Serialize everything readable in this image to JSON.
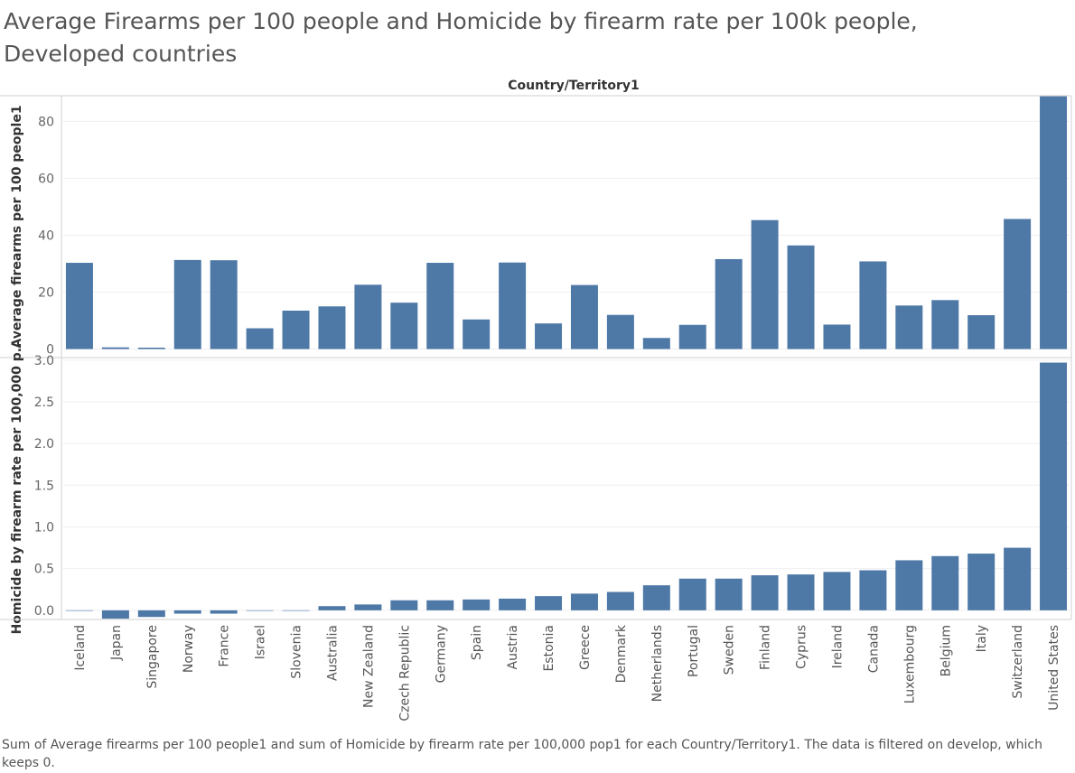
{
  "title": "Average Firearms per 100 people and Homicide by firearm rate per 100k people, Developed countries",
  "caption": "Sum of Average firearms per 100 people1 and sum of Homicide by firearm rate per 100,000 pop1 for each Country/Territory1. The data is filtered on develop, which keeps 0.",
  "chart_data": {
    "type": "bar",
    "column_header": "Country/Territory1",
    "categories": [
      "Iceland",
      "Japan",
      "Singapore",
      "Norway",
      "France",
      "Israel",
      "Slovenia",
      "Australia",
      "New Zealand",
      "Czech Republic",
      "Germany",
      "Spain",
      "Austria",
      "Estonia",
      "Greece",
      "Denmark",
      "Netherlands",
      "Portugal",
      "Sweden",
      "Finland",
      "Cyprus",
      "Ireland",
      "Canada",
      "Luxembourg",
      "Belgium",
      "Italy",
      "Switzerland",
      "United States"
    ],
    "series": [
      {
        "name": "Average firearms per 100 people1",
        "ylabel": "Average firearms per 100 people1",
        "yticks": [
          0,
          20,
          40,
          60,
          80
        ],
        "ylim": [
          -3,
          89
        ],
        "values": [
          30.3,
          0.6,
          0.5,
          31.3,
          31.2,
          7.3,
          13.5,
          15.0,
          22.6,
          16.3,
          30.3,
          10.4,
          30.4,
          9.0,
          22.5,
          12.0,
          3.9,
          8.5,
          31.6,
          45.3,
          36.4,
          8.6,
          30.8,
          15.3,
          17.2,
          11.9,
          45.7,
          88.8
        ]
      },
      {
        "name": "Homicide by firearm rate per 100,000 pop1",
        "ylabel": "Homicide by firearm rate per 100,000 p..",
        "yticks": [
          0.0,
          0.5,
          1.0,
          1.5,
          2.0,
          2.5,
          3.0
        ],
        "ylim": [
          -0.11,
          3.03
        ],
        "values": [
          0.0,
          -0.1,
          -0.08,
          -0.04,
          -0.04,
          0.0,
          0.0,
          0.05,
          0.07,
          0.12,
          0.12,
          0.13,
          0.14,
          0.17,
          0.2,
          0.22,
          0.3,
          0.38,
          0.38,
          0.42,
          0.43,
          0.46,
          0.48,
          0.6,
          0.65,
          0.68,
          0.75,
          2.97
        ]
      }
    ],
    "bar_color": "#4e79a7",
    "grid": true
  }
}
